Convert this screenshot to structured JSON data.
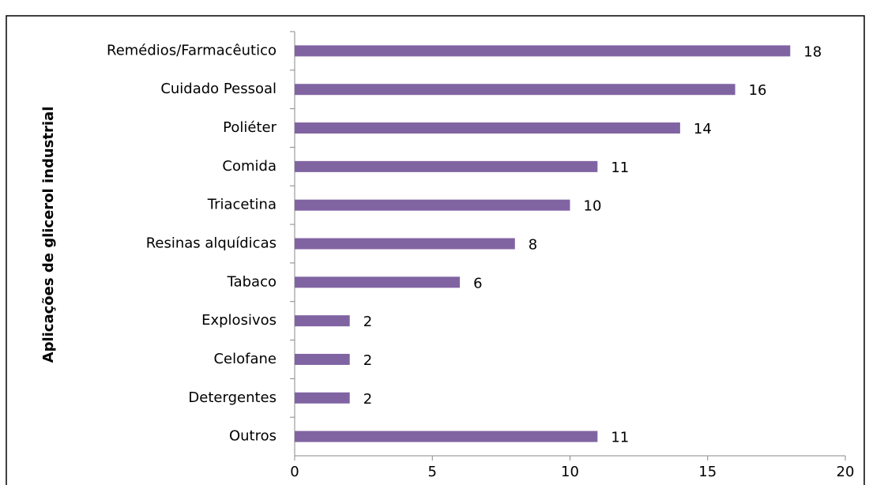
{
  "chart_data": {
    "type": "bar",
    "orientation": "horizontal",
    "y_axis_label": "Aplicações de glicerol industrial",
    "categories": [
      "Remédios/Farmacêutico",
      "Cuidado Pessoal",
      "Poliéter",
      "Comida",
      "Triacetina",
      "Resinas alquídicas",
      "Tabaco",
      "Explosivos",
      "Celofane",
      "Detergentes",
      "Outros"
    ],
    "values": [
      18,
      16,
      14,
      11,
      10,
      8,
      6,
      2,
      2,
      2,
      11
    ],
    "color": "#8064a2",
    "xlim": [
      0,
      20
    ],
    "xticks": [
      0,
      5,
      10,
      15,
      20
    ],
    "grid": false
  }
}
